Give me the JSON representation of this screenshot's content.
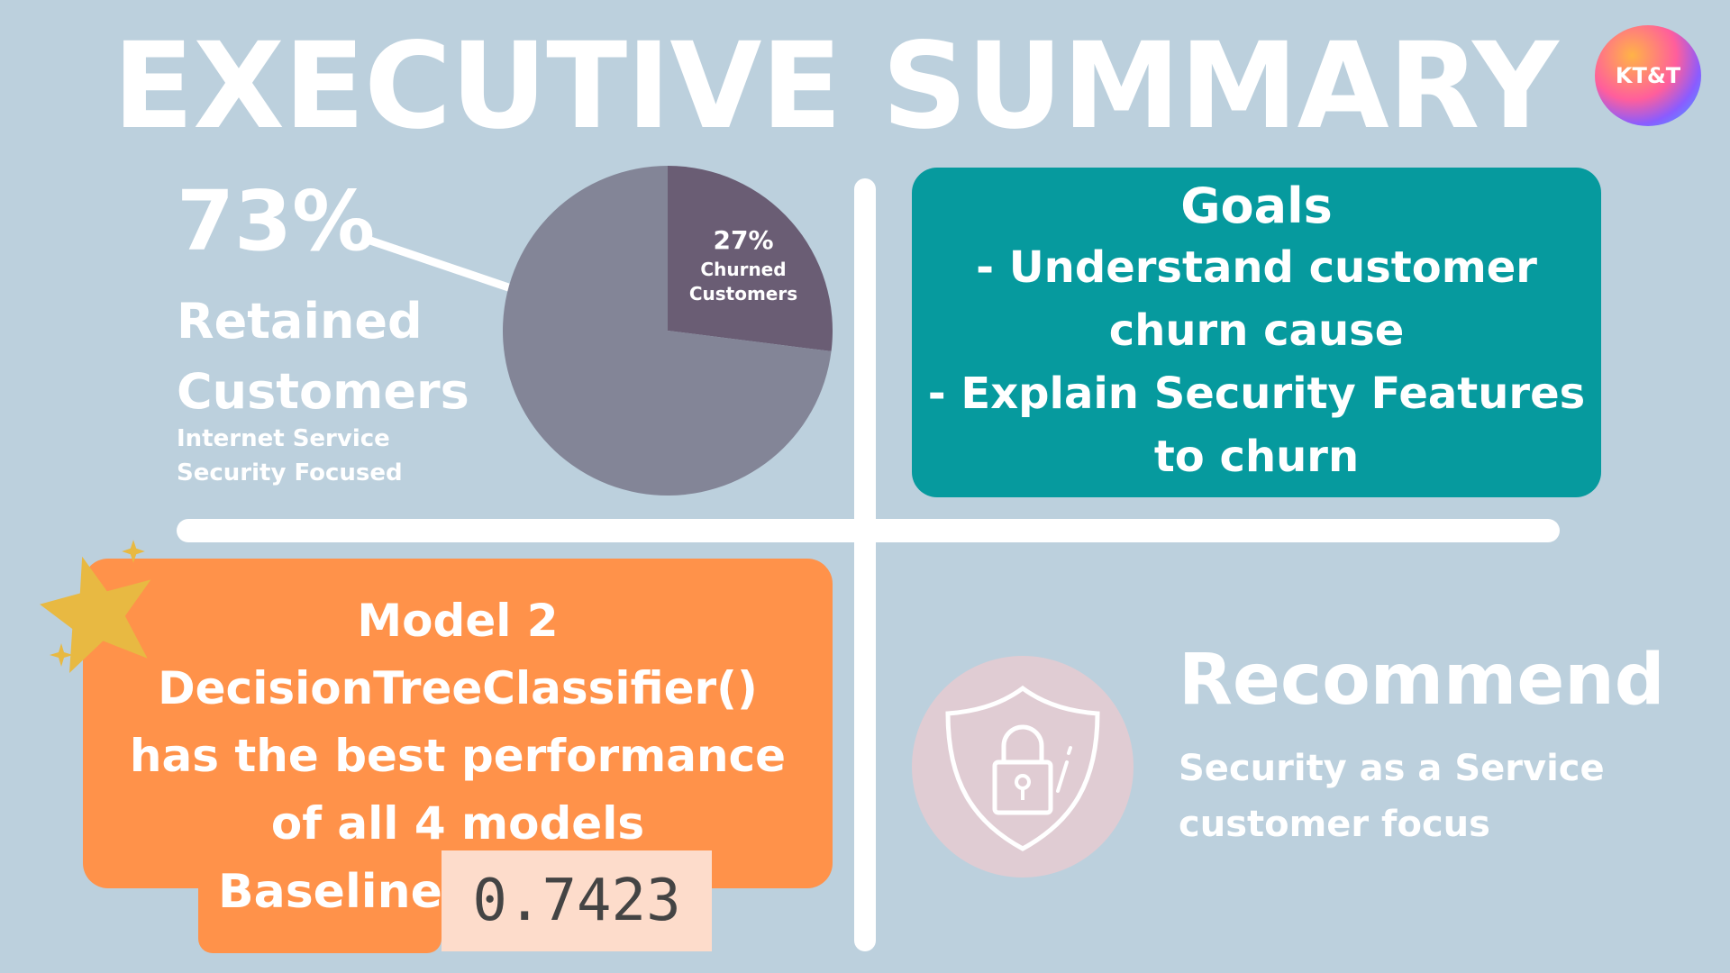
{
  "title": "EXECUTIVE SUMMARY",
  "logo_text": "KT&T",
  "retention": {
    "percent": "73%",
    "label": "Retained Customers",
    "subtitle_line1": "Internet Service",
    "subtitle_line2": "Security Focused"
  },
  "chart_data": {
    "type": "pie",
    "slices": [
      {
        "label": "Churned Customers",
        "value": 27,
        "color": "#6a5d74"
      },
      {
        "label": "Retained Customers",
        "value": 73,
        "color": "#838597"
      }
    ],
    "churn_label_pct": "27%",
    "churn_label_line1": "Churned",
    "churn_label_line2": "Customers"
  },
  "goals": {
    "heading": "Goals",
    "line1": "- Understand customer",
    "line2": "churn cause",
    "line3": "- Explain Security Features",
    "line4": "to churn"
  },
  "model": {
    "line1": "Model 2",
    "line2": "DecisionTreeClassifier()",
    "line3": "has the best performance",
    "line4": "of all 4 models",
    "baseline_label": "Baseline",
    "baseline_value": "0.7423"
  },
  "recommend": {
    "heading": "Recommend",
    "line1": "Security as a Service",
    "line2": "customer focus"
  },
  "colors": {
    "background": "#bcd0dd",
    "goals_box": "#069a9e",
    "model_box": "#ff924a",
    "star": "#e8b942",
    "shield_circle": "#e0ccd3"
  },
  "icons": {
    "star": "star-icon",
    "shield": "shield-lock-icon"
  }
}
